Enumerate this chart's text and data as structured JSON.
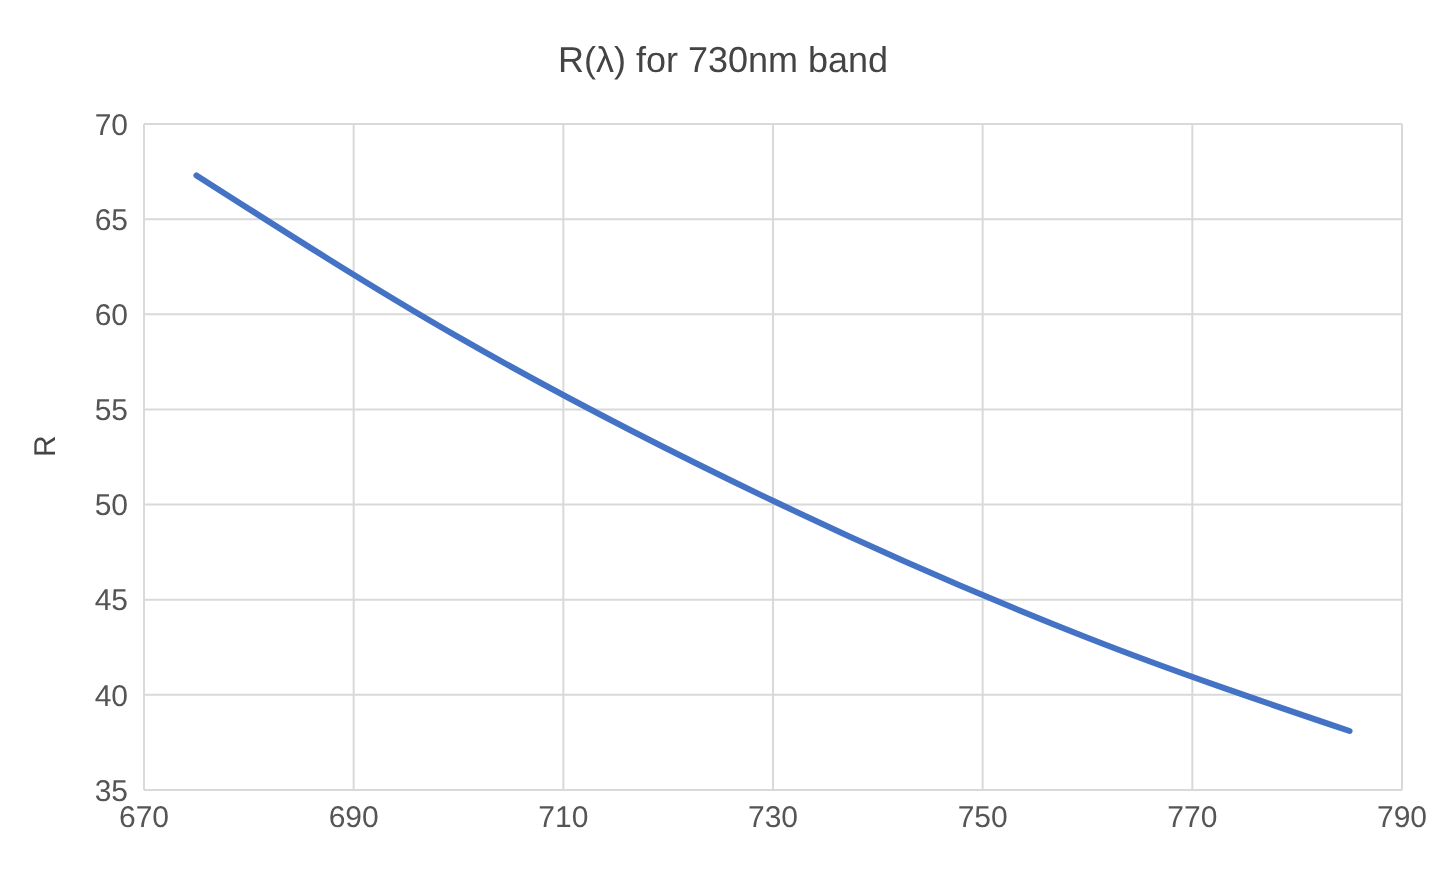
{
  "chart_data": {
    "type": "line",
    "title": "R(λ) for 730nm band",
    "ylabel": "R",
    "x": [
      675,
      700,
      730,
      760,
      785
    ],
    "series": [
      {
        "color": "#4472c4",
        "values": [
          67.3,
          58.8,
          50.2,
          43.0,
          38.1
        ]
      }
    ],
    "xlim": [
      670,
      790
    ],
    "xticks": [
      670,
      690,
      710,
      730,
      750,
      770,
      790
    ],
    "ylim": [
      35,
      70
    ],
    "yticks": [
      35,
      40,
      45,
      50,
      55,
      60,
      65,
      70
    ],
    "grid": true,
    "marker": "none",
    "line_style": "solid"
  }
}
